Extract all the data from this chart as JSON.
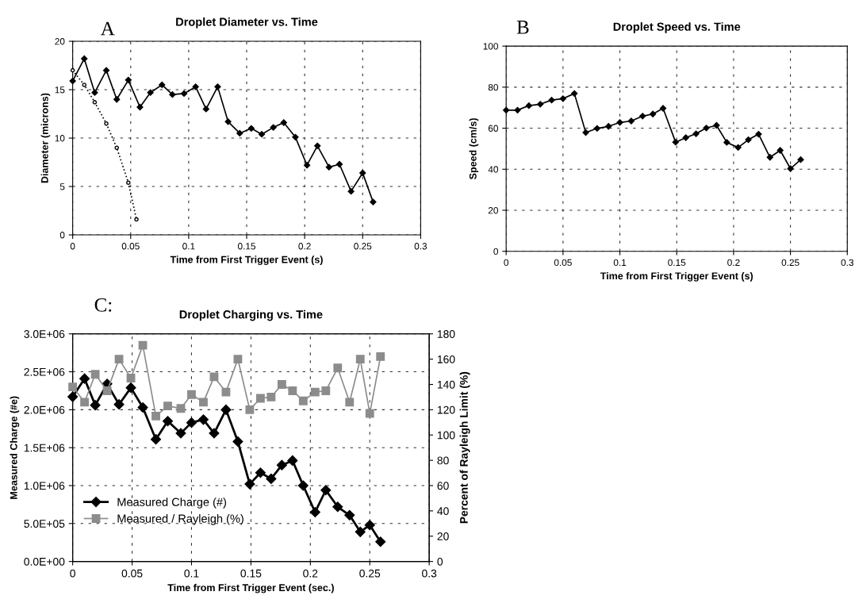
{
  "chart_data": [
    {
      "type": "line",
      "title": "Droplet Diameter vs. Time",
      "annotations": [
        "A"
      ],
      "xlabel": "Time from First Trigger Event (s)",
      "ylabel": "Diameter (microns)",
      "xlim": [
        0,
        0.3
      ],
      "xticks": [
        0,
        0.05,
        0.1,
        0.15,
        0.2,
        0.25,
        0.3
      ],
      "ylim": [
        0,
        20
      ],
      "yticks": [
        0,
        5,
        10,
        15,
        20
      ],
      "grid": true,
      "legend": false,
      "series": [
        {
          "color": "#000000",
          "marker": "diamond",
          "line_style": "solid",
          "x": [
            0,
            0.01,
            0.019,
            0.029,
            0.038,
            0.048,
            0.058,
            0.067,
            0.077,
            0.086,
            0.096,
            0.106,
            0.115,
            0.125,
            0.134,
            0.144,
            0.154,
            0.163,
            0.173,
            0.182,
            0.192,
            0.202,
            0.211,
            0.221,
            0.23,
            0.24,
            0.25,
            0.259
          ],
          "values": [
            15.9,
            18.2,
            14.7,
            17.0,
            14.0,
            16.0,
            13.2,
            14.7,
            15.5,
            14.5,
            14.6,
            15.3,
            13.0,
            15.3,
            11.7,
            10.5,
            11.0,
            10.4,
            11.1,
            11.6,
            10.1,
            7.2,
            9.2,
            7.0,
            7.3,
            4.5,
            6.4,
            3.4
          ]
        },
        {
          "color": "#000000",
          "marker": "circle",
          "line_style": "dotted",
          "x": [
            0,
            0.01,
            0.019,
            0.029,
            0.038,
            0.048,
            0.055
          ],
          "values": [
            17.0,
            15.5,
            13.7,
            11.5,
            9.0,
            5.4,
            1.6
          ]
        }
      ]
    },
    {
      "type": "line",
      "title": "Droplet Speed vs. Time",
      "annotations": [
        "B"
      ],
      "xlabel": "Time from First Trigger Event (s)",
      "ylabel": "Speed (cm/s)",
      "xlim": [
        0,
        0.3
      ],
      "xticks": [
        0,
        0.05,
        0.1,
        0.15,
        0.2,
        0.25,
        0.3
      ],
      "ylim": [
        0,
        100
      ],
      "yticks": [
        0,
        20,
        40,
        60,
        80,
        100
      ],
      "grid": true,
      "legend": false,
      "series": [
        {
          "color": "#000000",
          "marker": "diamond",
          "line_style": "solid",
          "x": [
            0,
            0.01,
            0.02,
            0.03,
            0.04,
            0.05,
            0.06,
            0.07,
            0.08,
            0.09,
            0.1,
            0.11,
            0.12,
            0.129,
            0.138,
            0.149,
            0.158,
            0.167,
            0.176,
            0.185,
            0.194,
            0.204,
            0.213,
            0.222,
            0.232,
            0.241,
            0.25,
            0.259
          ],
          "values": [
            68.8,
            68.8,
            71.0,
            71.7,
            73.7,
            74.4,
            76.9,
            57.9,
            59.9,
            60.9,
            62.8,
            63.5,
            65.9,
            66.9,
            69.7,
            53.2,
            55.4,
            57.3,
            60.1,
            61.4,
            53.1,
            50.6,
            54.4,
            57.1,
            45.8,
            49.2,
            40.3,
            44.7
          ]
        }
      ]
    },
    {
      "type": "line",
      "title": "Droplet Charging vs. Time",
      "annotations": [
        "C:"
      ],
      "xlabel": "Time from First Trigger Event (sec.)",
      "ylabel": "Measured Charge (#e)",
      "y2label": "Percent of Rayleigh Limit (%)",
      "xlim": [
        0,
        0.3
      ],
      "xticks": [
        0,
        0.05,
        0.1,
        0.15,
        0.2,
        0.25,
        0.3
      ],
      "ylim": [
        0,
        3000000
      ],
      "yticks": [
        {
          "value": 0,
          "label": "0.0E+00"
        },
        {
          "value": 500000,
          "label": "5.0E+05"
        },
        {
          "value": 1000000,
          "label": "1.0E+06"
        },
        {
          "value": 1500000,
          "label": "1.5E+06"
        },
        {
          "value": 2000000,
          "label": "2.0E+06"
        },
        {
          "value": 2500000,
          "label": "2.5E+06"
        },
        {
          "value": 3000000,
          "label": "3.0E+06"
        }
      ],
      "y2lim": [
        0,
        180
      ],
      "y2ticks": [
        0,
        20,
        40,
        60,
        80,
        100,
        120,
        140,
        160,
        180
      ],
      "grid": true,
      "legend": "bottom left",
      "series": [
        {
          "name": "Measured Charge (#)",
          "color": "#000000",
          "marker": "diamond",
          "line_style": "solid",
          "x": [
            0,
            0.01,
            0.019,
            0.029,
            0.039,
            0.049,
            0.059,
            0.07,
            0.08,
            0.091,
            0.1,
            0.11,
            0.119,
            0.129,
            0.139,
            0.149,
            0.158,
            0.167,
            0.176,
            0.185,
            0.194,
            0.204,
            0.213,
            0.223,
            0.233,
            0.242,
            0.25,
            0.259
          ],
          "values": [
            2170000,
            2410000,
            2060000,
            2340000,
            2070000,
            2290000,
            2030000,
            1610000,
            1850000,
            1690000,
            1830000,
            1870000,
            1690000,
            2000000,
            1580000,
            1020000,
            1170000,
            1090000,
            1270000,
            1330000,
            1000000,
            650000,
            940000,
            720000,
            610000,
            390000,
            480000,
            260000
          ]
        },
        {
          "name": "Measured / Rayleigh (%)",
          "color": "#8c8c8c",
          "marker": "square",
          "line_style": "solid",
          "axis": "y2",
          "x": [
            0,
            0.01,
            0.019,
            0.029,
            0.039,
            0.049,
            0.059,
            0.07,
            0.08,
            0.091,
            0.1,
            0.11,
            0.119,
            0.129,
            0.139,
            0.149,
            0.158,
            0.167,
            0.176,
            0.185,
            0.194,
            0.204,
            0.213,
            0.223,
            0.233,
            0.242,
            0.25,
            0.259
          ],
          "values": [
            138,
            126,
            148,
            135,
            160,
            145,
            171,
            115,
            123,
            121,
            132,
            126,
            146,
            134,
            160,
            120,
            129,
            130,
            140,
            135,
            127,
            134,
            135,
            153,
            126,
            160,
            117,
            162
          ]
        }
      ]
    }
  ]
}
